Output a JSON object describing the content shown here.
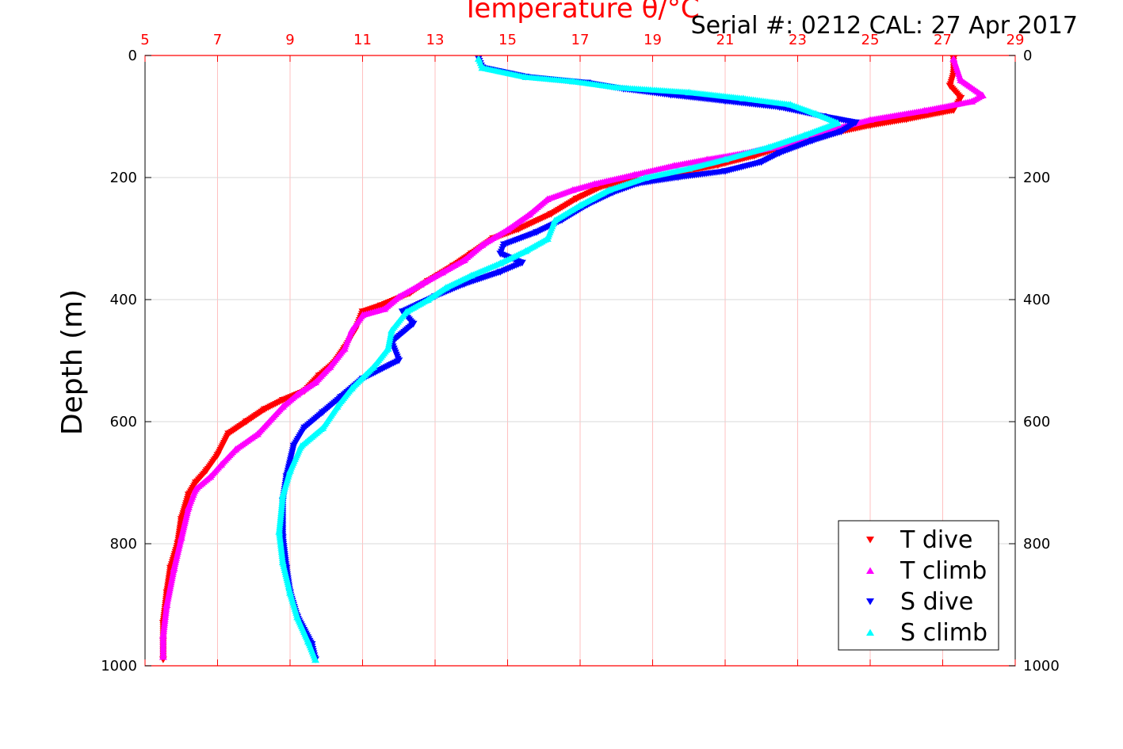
{
  "chart_data": {
    "type": "scatter",
    "title": "Temperature θ/°C",
    "title_color": "#ff0000",
    "serial_text": "Serial #: 0212  CAL: 27 Apr 2017",
    "xlabel": "Temperature θ/°C",
    "ylabel": "Depth (m)",
    "xlim": [
      5,
      29
    ],
    "ylim": [
      0,
      1000
    ],
    "y_reversed": true,
    "x_axis_position": "top",
    "x_ticks": [
      5,
      7,
      9,
      11,
      13,
      15,
      17,
      19,
      21,
      23,
      25,
      27,
      29
    ],
    "x_tick_labels": [
      "5",
      "7",
      "9",
      "11",
      "13",
      "15",
      "17",
      "19",
      "21",
      "23",
      "25",
      "27",
      "29"
    ],
    "y_ticks": [
      0,
      200,
      400,
      600,
      800,
      1000
    ],
    "y_tick_labels": [
      "0",
      "200",
      "400",
      "600",
      "800",
      "1000"
    ],
    "x_axis_color": "#ff0000",
    "x_grid_color": "#ffc0c0",
    "y_grid_color": "#d8d8d8",
    "grid": true,
    "legend_position": "bottom-right",
    "legend_entries": [
      "T dive",
      "T climb",
      "S dive",
      "S climb"
    ],
    "series": [
      {
        "name": "T dive",
        "color": "#ff0000",
        "marker": "triangle-down",
        "points": [
          [
            27.3,
            5
          ],
          [
            27.3,
            30
          ],
          [
            27.2,
            50
          ],
          [
            27.5,
            70
          ],
          [
            27.3,
            90
          ],
          [
            26.0,
            105
          ],
          [
            25.0,
            115
          ],
          [
            24.2,
            125
          ],
          [
            23.3,
            140
          ],
          [
            22.6,
            150
          ],
          [
            21.8,
            165
          ],
          [
            20.8,
            180
          ],
          [
            19.6,
            195
          ],
          [
            18.6,
            205
          ],
          [
            17.6,
            215
          ],
          [
            16.9,
            235
          ],
          [
            16.2,
            260
          ],
          [
            15.3,
            285
          ],
          [
            14.6,
            300
          ],
          [
            14.0,
            325
          ],
          [
            13.5,
            345
          ],
          [
            12.8,
            370
          ],
          [
            12.3,
            390
          ],
          [
            11.5,
            410
          ],
          [
            11.0,
            420
          ],
          [
            10.8,
            450
          ],
          [
            10.5,
            480
          ],
          [
            10.2,
            505
          ],
          [
            9.8,
            525
          ],
          [
            9.4,
            550
          ],
          [
            8.8,
            565
          ],
          [
            8.3,
            580
          ],
          [
            7.8,
            600
          ],
          [
            7.3,
            620
          ],
          [
            7.0,
            655
          ],
          [
            6.7,
            680
          ],
          [
            6.4,
            700
          ],
          [
            6.2,
            720
          ],
          [
            6.0,
            760
          ],
          [
            5.9,
            800
          ],
          [
            5.7,
            840
          ],
          [
            5.6,
            880
          ],
          [
            5.5,
            930
          ],
          [
            5.5,
            990
          ]
        ]
      },
      {
        "name": "T climb",
        "color": "#ff00ff",
        "marker": "triangle-up",
        "points": [
          [
            27.3,
            5
          ],
          [
            27.5,
            40
          ],
          [
            28.1,
            65
          ],
          [
            27.8,
            75
          ],
          [
            26.5,
            90
          ],
          [
            25.0,
            105
          ],
          [
            24.0,
            120
          ],
          [
            23.2,
            135
          ],
          [
            22.4,
            150
          ],
          [
            21.5,
            160
          ],
          [
            20.5,
            170
          ],
          [
            19.6,
            180
          ],
          [
            18.5,
            195
          ],
          [
            17.4,
            210
          ],
          [
            16.8,
            220
          ],
          [
            16.1,
            235
          ],
          [
            15.6,
            260
          ],
          [
            15.0,
            285
          ],
          [
            14.3,
            310
          ],
          [
            13.8,
            335
          ],
          [
            13.2,
            355
          ],
          [
            12.6,
            375
          ],
          [
            12.0,
            395
          ],
          [
            11.6,
            415
          ],
          [
            11.0,
            425
          ],
          [
            10.7,
            450
          ],
          [
            10.5,
            480
          ],
          [
            10.1,
            510
          ],
          [
            9.7,
            535
          ],
          [
            9.2,
            555
          ],
          [
            8.8,
            575
          ],
          [
            8.1,
            620
          ],
          [
            7.5,
            645
          ],
          [
            7.1,
            670
          ],
          [
            6.8,
            690
          ],
          [
            6.4,
            710
          ],
          [
            6.2,
            740
          ],
          [
            6.0,
            790
          ],
          [
            5.8,
            840
          ],
          [
            5.6,
            900
          ],
          [
            5.5,
            950
          ],
          [
            5.5,
            985
          ]
        ]
      },
      {
        "name": "S dive",
        "color": "#0000ff",
        "marker": "triangle-down",
        "points": [
          [
            14.2,
            5
          ],
          [
            14.3,
            20
          ],
          [
            15.5,
            35
          ],
          [
            17.2,
            45
          ],
          [
            18.2,
            55
          ],
          [
            19.5,
            65
          ],
          [
            21.0,
            75
          ],
          [
            22.5,
            85
          ],
          [
            23.7,
            100
          ],
          [
            24.6,
            110
          ],
          [
            24.2,
            125
          ],
          [
            23.4,
            140
          ],
          [
            22.5,
            160
          ],
          [
            22.0,
            175
          ],
          [
            21.0,
            190
          ],
          [
            19.7,
            200
          ],
          [
            18.6,
            210
          ],
          [
            17.9,
            225
          ],
          [
            17.2,
            245
          ],
          [
            16.5,
            270
          ],
          [
            15.8,
            290
          ],
          [
            14.9,
            310
          ],
          [
            14.8,
            325
          ],
          [
            15.4,
            340
          ],
          [
            14.8,
            355
          ],
          [
            13.8,
            375
          ],
          [
            13.0,
            395
          ],
          [
            12.1,
            420
          ],
          [
            12.4,
            440
          ],
          [
            11.8,
            470
          ],
          [
            12.0,
            500
          ],
          [
            11.0,
            530
          ],
          [
            10.4,
            560
          ],
          [
            9.9,
            585
          ],
          [
            9.4,
            610
          ],
          [
            9.1,
            640
          ],
          [
            8.9,
            690
          ],
          [
            8.8,
            730
          ],
          [
            8.8,
            790
          ],
          [
            8.9,
            840
          ],
          [
            9.0,
            880
          ],
          [
            9.2,
            920
          ],
          [
            9.6,
            965
          ],
          [
            9.7,
            990
          ]
        ]
      },
      {
        "name": "S climb",
        "color": "#00ffff",
        "marker": "triangle-up",
        "points": [
          [
            14.2,
            5
          ],
          [
            14.3,
            20
          ],
          [
            15.5,
            35
          ],
          [
            16.8,
            42
          ],
          [
            18.0,
            52
          ],
          [
            20.0,
            60
          ],
          [
            21.5,
            70
          ],
          [
            22.8,
            80
          ],
          [
            23.5,
            95
          ],
          [
            24.1,
            110
          ],
          [
            23.2,
            130
          ],
          [
            22.2,
            150
          ],
          [
            21.0,
            170
          ],
          [
            20.0,
            185
          ],
          [
            18.8,
            200
          ],
          [
            17.8,
            220
          ],
          [
            17.0,
            245
          ],
          [
            16.3,
            270
          ],
          [
            16.1,
            300
          ],
          [
            15.5,
            320
          ],
          [
            14.8,
            340
          ],
          [
            14.0,
            360
          ],
          [
            13.3,
            380
          ],
          [
            12.8,
            400
          ],
          [
            12.2,
            420
          ],
          [
            11.8,
            450
          ],
          [
            11.7,
            480
          ],
          [
            11.3,
            510
          ],
          [
            10.7,
            545
          ],
          [
            10.3,
            575
          ],
          [
            9.9,
            610
          ],
          [
            9.3,
            640
          ],
          [
            9.0,
            680
          ],
          [
            8.8,
            720
          ],
          [
            8.7,
            780
          ],
          [
            8.8,
            830
          ],
          [
            9.0,
            880
          ],
          [
            9.2,
            920
          ],
          [
            9.5,
            960
          ],
          [
            9.7,
            990
          ]
        ]
      }
    ]
  }
}
